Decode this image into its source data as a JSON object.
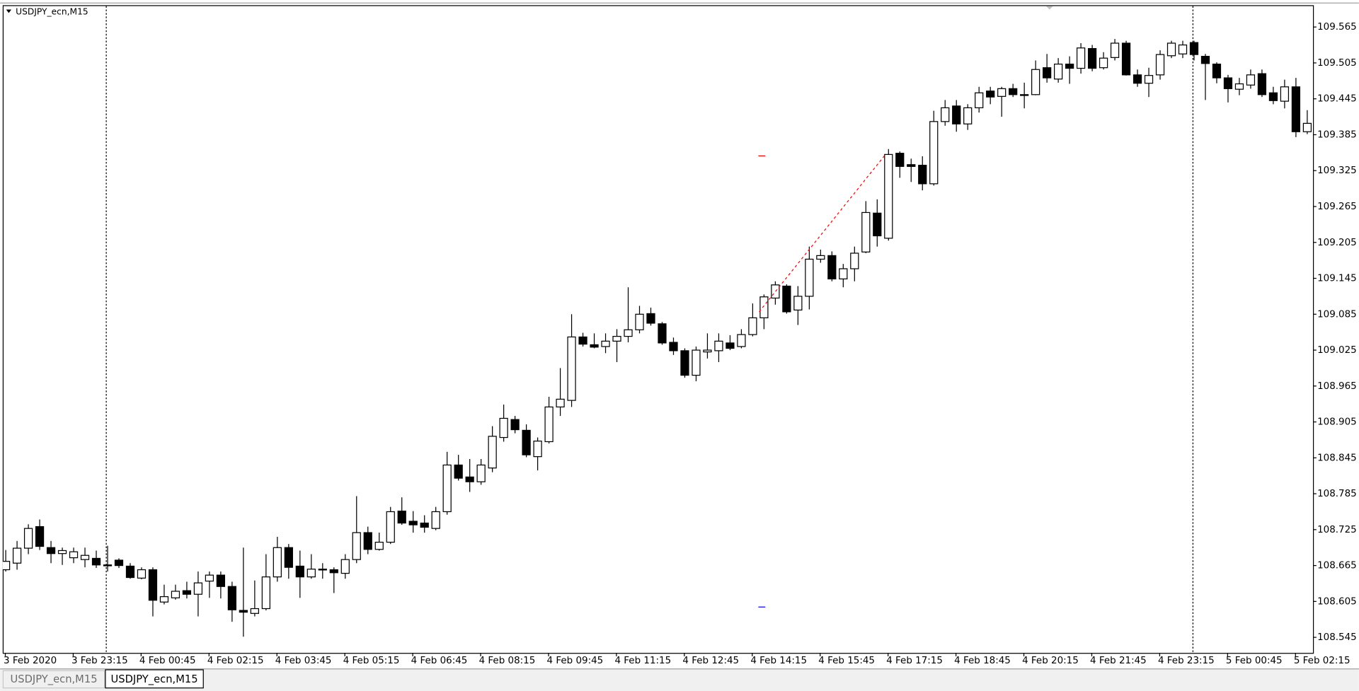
{
  "chart_data": {
    "type": "candlestick",
    "title": "USDJPY_ecn,M15",
    "up_color": "#ffffff",
    "down_color": "#000000",
    "wick_color": "#000000",
    "grid": false,
    "categories": [
      "3 Feb 2020",
      null,
      null,
      null,
      null,
      null,
      "3 Feb 23:15",
      null,
      null,
      null,
      null,
      null,
      "4 Feb 00:45",
      null,
      null,
      null,
      null,
      null,
      "4 Feb 02:15",
      null,
      null,
      null,
      null,
      null,
      "4 Feb 03:45",
      null,
      null,
      null,
      null,
      null,
      "4 Feb 05:15",
      null,
      null,
      null,
      null,
      null,
      "4 Feb 06:45",
      null,
      null,
      null,
      null,
      null,
      "4 Feb 08:15",
      null,
      null,
      null,
      null,
      null,
      "4 Feb 09:45",
      null,
      null,
      null,
      null,
      null,
      "4 Feb 11:15",
      null,
      null,
      null,
      null,
      null,
      "4 Feb 12:45",
      null,
      null,
      null,
      null,
      null,
      "4 Feb 14:15",
      null,
      null,
      null,
      null,
      null,
      "4 Feb 15:45",
      null,
      null,
      null,
      null,
      null,
      "4 Feb 17:15",
      null,
      null,
      null,
      null,
      null,
      "4 Feb 18:45",
      null,
      null,
      null,
      null,
      null,
      "4 Feb 20:15",
      null,
      null,
      null,
      null,
      null,
      "4 Feb 21:45",
      null,
      null,
      null,
      null,
      null,
      "4 Feb 23:15",
      null,
      null,
      null,
      null,
      null,
      "5 Feb 00:45",
      null,
      null,
      null,
      null,
      null,
      "5 Feb 02:15",
      null
    ],
    "open": [
      108.658,
      108.669,
      108.694,
      108.73,
      108.695,
      108.685,
      108.678,
      108.675,
      108.677,
      108.666,
      108.674,
      108.664,
      108.644,
      108.658,
      108.604,
      108.611,
      108.623,
      108.617,
      108.639,
      108.649,
      108.63,
      108.59,
      108.585,
      108.593,
      108.646,
      108.695,
      108.664,
      108.646,
      108.659,
      108.658,
      108.652,
      108.675,
      108.72,
      108.692,
      108.704,
      108.756,
      108.739,
      108.736,
      108.727,
      108.755,
      108.833,
      108.813,
      108.805,
      108.828,
      108.879,
      108.909,
      108.891,
      108.847,
      108.872,
      108.93,
      108.941,
      109.047,
      109.034,
      109.031,
      109.04,
      109.048,
      109.059,
      109.086,
      109.069,
      109.038,
      109.024,
      108.983,
      109.022,
      109.024,
      109.037,
      109.031,
      109.051,
      109.079,
      109.112,
      109.132,
      109.092,
      109.115,
      109.177,
      109.183,
      109.144,
      109.161,
      109.189,
      109.254,
      109.212,
      109.354,
      109.335,
      109.334,
      109.303,
      109.407,
      109.433,
      109.403,
      109.43,
      109.458,
      109.449,
      109.462,
      109.451,
      109.452,
      109.497,
      109.478,
      109.503,
      109.496,
      109.529,
      109.497,
      109.514,
      109.538,
      109.485,
      109.471,
      109.485,
      109.517,
      109.52,
      109.539,
      109.516,
      109.503,
      109.48,
      109.461,
      109.468,
      109.487,
      109.455,
      109.441,
      109.465,
      109.39
    ],
    "high": [
      108.691,
      108.706,
      108.734,
      108.742,
      108.706,
      108.695,
      108.695,
      108.695,
      108.69,
      108.698,
      108.677,
      108.669,
      108.662,
      108.662,
      108.633,
      108.633,
      108.638,
      108.655,
      108.655,
      108.655,
      108.638,
      108.695,
      108.64,
      108.684,
      108.713,
      108.701,
      108.69,
      108.684,
      108.669,
      108.662,
      108.684,
      108.781,
      108.73,
      108.72,
      108.763,
      108.779,
      108.756,
      108.749,
      108.763,
      108.855,
      108.85,
      108.843,
      108.843,
      108.898,
      108.934,
      108.915,
      108.901,
      108.879,
      108.947,
      108.995,
      109.085,
      109.054,
      109.053,
      109.053,
      109.06,
      109.13,
      109.099,
      109.096,
      109.072,
      109.046,
      109.028,
      109.031,
      109.053,
      109.053,
      109.05,
      109.06,
      109.103,
      109.118,
      109.14,
      109.135,
      109.132,
      109.198,
      109.193,
      109.19,
      109.169,
      109.198,
      109.274,
      109.277,
      109.361,
      109.357,
      109.345,
      109.349,
      109.425,
      109.443,
      109.443,
      109.436,
      109.465,
      109.465,
      109.465,
      109.47,
      109.472,
      109.509,
      109.52,
      109.513,
      109.516,
      109.538,
      109.535,
      109.523,
      109.545,
      109.542,
      109.494,
      109.497,
      109.526,
      109.542,
      109.542,
      109.542,
      109.52,
      109.506,
      109.485,
      109.48,
      109.494,
      109.494,
      109.465,
      109.477,
      109.48,
      109.426
    ],
    "low": [
      108.655,
      108.658,
      108.684,
      108.691,
      108.669,
      108.666,
      108.669,
      108.662,
      108.661,
      108.655,
      108.661,
      108.643,
      108.642,
      108.58,
      108.6,
      108.608,
      108.61,
      108.58,
      108.611,
      108.61,
      108.571,
      108.546,
      108.58,
      108.59,
      108.638,
      108.643,
      108.611,
      108.643,
      108.643,
      108.619,
      108.643,
      108.669,
      108.684,
      108.69,
      108.701,
      108.733,
      108.72,
      108.72,
      108.724,
      108.75,
      108.807,
      108.788,
      108.8,
      108.821,
      108.872,
      108.886,
      108.846,
      108.824,
      108.869,
      108.915,
      108.93,
      109.031,
      109.028,
      109.02,
      109.005,
      109.038,
      109.053,
      109.066,
      109.034,
      109.017,
      108.979,
      108.973,
      109.011,
      109.005,
      109.025,
      109.028,
      109.048,
      109.06,
      109.101,
      109.086,
      109.067,
      109.093,
      109.171,
      109.14,
      109.13,
      109.14,
      109.187,
      109.198,
      109.208,
      109.313,
      109.306,
      109.292,
      109.3,
      109.4,
      109.39,
      109.393,
      109.422,
      109.436,
      109.415,
      109.448,
      109.429,
      109.451,
      109.472,
      109.472,
      109.47,
      109.487,
      109.491,
      109.494,
      109.509,
      109.484,
      109.465,
      109.448,
      109.477,
      109.513,
      109.513,
      109.509,
      109.443,
      109.471,
      109.439,
      109.451,
      109.462,
      109.448,
      109.436,
      109.429,
      109.381,
      109.386
    ],
    "close": [
      108.672,
      108.694,
      108.727,
      108.697,
      108.685,
      108.69,
      108.688,
      108.682,
      108.666,
      108.665,
      108.665,
      108.645,
      108.658,
      108.607,
      108.613,
      108.622,
      108.617,
      108.636,
      108.649,
      108.63,
      108.591,
      108.587,
      108.593,
      108.646,
      108.695,
      108.662,
      108.646,
      108.659,
      108.658,
      108.653,
      108.675,
      108.72,
      108.692,
      108.704,
      108.755,
      108.736,
      108.733,
      108.729,
      108.755,
      108.833,
      108.811,
      108.805,
      108.833,
      108.881,
      108.911,
      108.892,
      108.85,
      108.873,
      108.93,
      108.943,
      109.047,
      109.035,
      109.03,
      109.04,
      109.048,
      109.059,
      109.085,
      109.07,
      109.037,
      109.024,
      108.983,
      109.025,
      109.025,
      109.04,
      109.028,
      109.051,
      109.079,
      109.114,
      109.134,
      109.089,
      109.115,
      109.177,
      109.183,
      109.144,
      109.161,
      109.187,
      109.255,
      109.216,
      109.352,
      109.332,
      109.332,
      109.303,
      109.407,
      109.43,
      109.403,
      109.43,
      109.455,
      109.448,
      109.462,
      109.452,
      109.452,
      109.494,
      109.48,
      109.503,
      109.496,
      109.53,
      109.496,
      109.513,
      109.538,
      109.485,
      109.471,
      109.484,
      109.519,
      109.538,
      109.535,
      109.519,
      109.504,
      109.48,
      109.462,
      109.47,
      109.485,
      109.452,
      109.442,
      109.465,
      109.39,
      109.404
    ],
    "ylim": [
      108.519,
      109.6
    ],
    "yticks": [
      108.545,
      108.605,
      108.665,
      108.725,
      108.785,
      108.845,
      108.905,
      108.965,
      109.025,
      109.085,
      109.145,
      109.205,
      109.265,
      109.325,
      109.385,
      109.445,
      109.505,
      109.565
    ]
  },
  "tabs": [
    "USDJPY_ecn,M15",
    "USDJPY_ecn,M15"
  ]
}
